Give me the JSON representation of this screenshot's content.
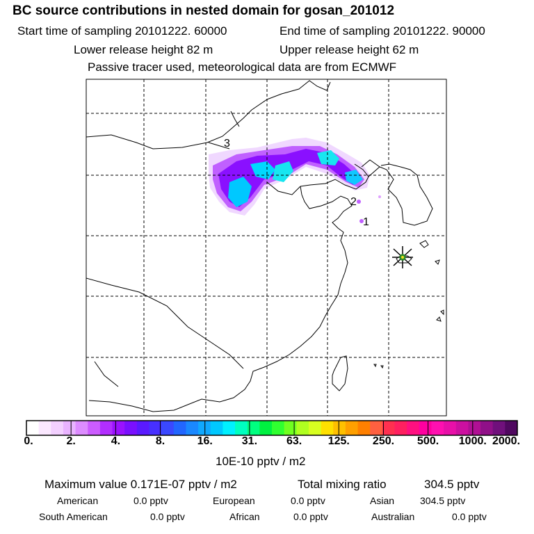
{
  "header": {
    "title": "BC  source contributions in nested domain for gosan_201012",
    "start_time": "Start time of sampling 20101222. 60000",
    "end_time": "End time of sampling 20101222. 90000",
    "lower_release": "Lower release height   82 m",
    "upper_release": "Upper release height   62 m",
    "tracer_note": "Passive tracer used, meteorological data are from ECMWF"
  },
  "map": {
    "labels": [
      "3",
      "2",
      "1"
    ],
    "receptor_color": "#2a8a2a",
    "plume_colors": [
      "#f0d8ff",
      "#c060ff",
      "#8a10ff",
      "#00c8ff",
      "#18e6f0"
    ]
  },
  "colorbar": {
    "ticks": [
      "0.",
      "2.",
      "4.",
      "8.",
      "16.",
      "31.",
      "63.",
      "125.",
      "250.",
      "500.",
      "1000.",
      "2000."
    ],
    "colors": [
      "#ffffff",
      "#fbe8ff",
      "#f3d0ff",
      "#e9b3ff",
      "#dd8cff",
      "#cc5cff",
      "#b22eff",
      "#9a12ff",
      "#7a10ff",
      "#5a1aff",
      "#4730ff",
      "#3a48ff",
      "#2266ff",
      "#1a88ff",
      "#10a8ff",
      "#00c8ff",
      "#00f0ff",
      "#00ffc0",
      "#00ff80",
      "#00f040",
      "#30ff30",
      "#70ff20",
      "#b0ff20",
      "#d8ff20",
      "#ffe000",
      "#ffc000",
      "#ffa000",
      "#ff8000",
      "#ff6040",
      "#ff3050",
      "#ff2060",
      "#ff1080",
      "#ff00a0",
      "#ff10b0",
      "#e810a8",
      "#cc10a0",
      "#b01094",
      "#901088",
      "#70107c",
      "#500860"
    ],
    "units": "10E-10 pptv / m2"
  },
  "summary": {
    "maximum": "Maximum value  0.171E-07 pptv / m2",
    "total_label": "Total mixing ratio",
    "total_value": "304.5 pptv",
    "regions": [
      {
        "name": "American",
        "value": "0.0 pptv"
      },
      {
        "name": "European",
        "value": "0.0 pptv"
      },
      {
        "name": "Asian",
        "value": "304.5 pptv"
      },
      {
        "name": "South American",
        "value": "0.0 pptv"
      },
      {
        "name": "African",
        "value": "0.0 pptv"
      },
      {
        "name": "Australian",
        "value": "0.0 pptv"
      }
    ]
  }
}
